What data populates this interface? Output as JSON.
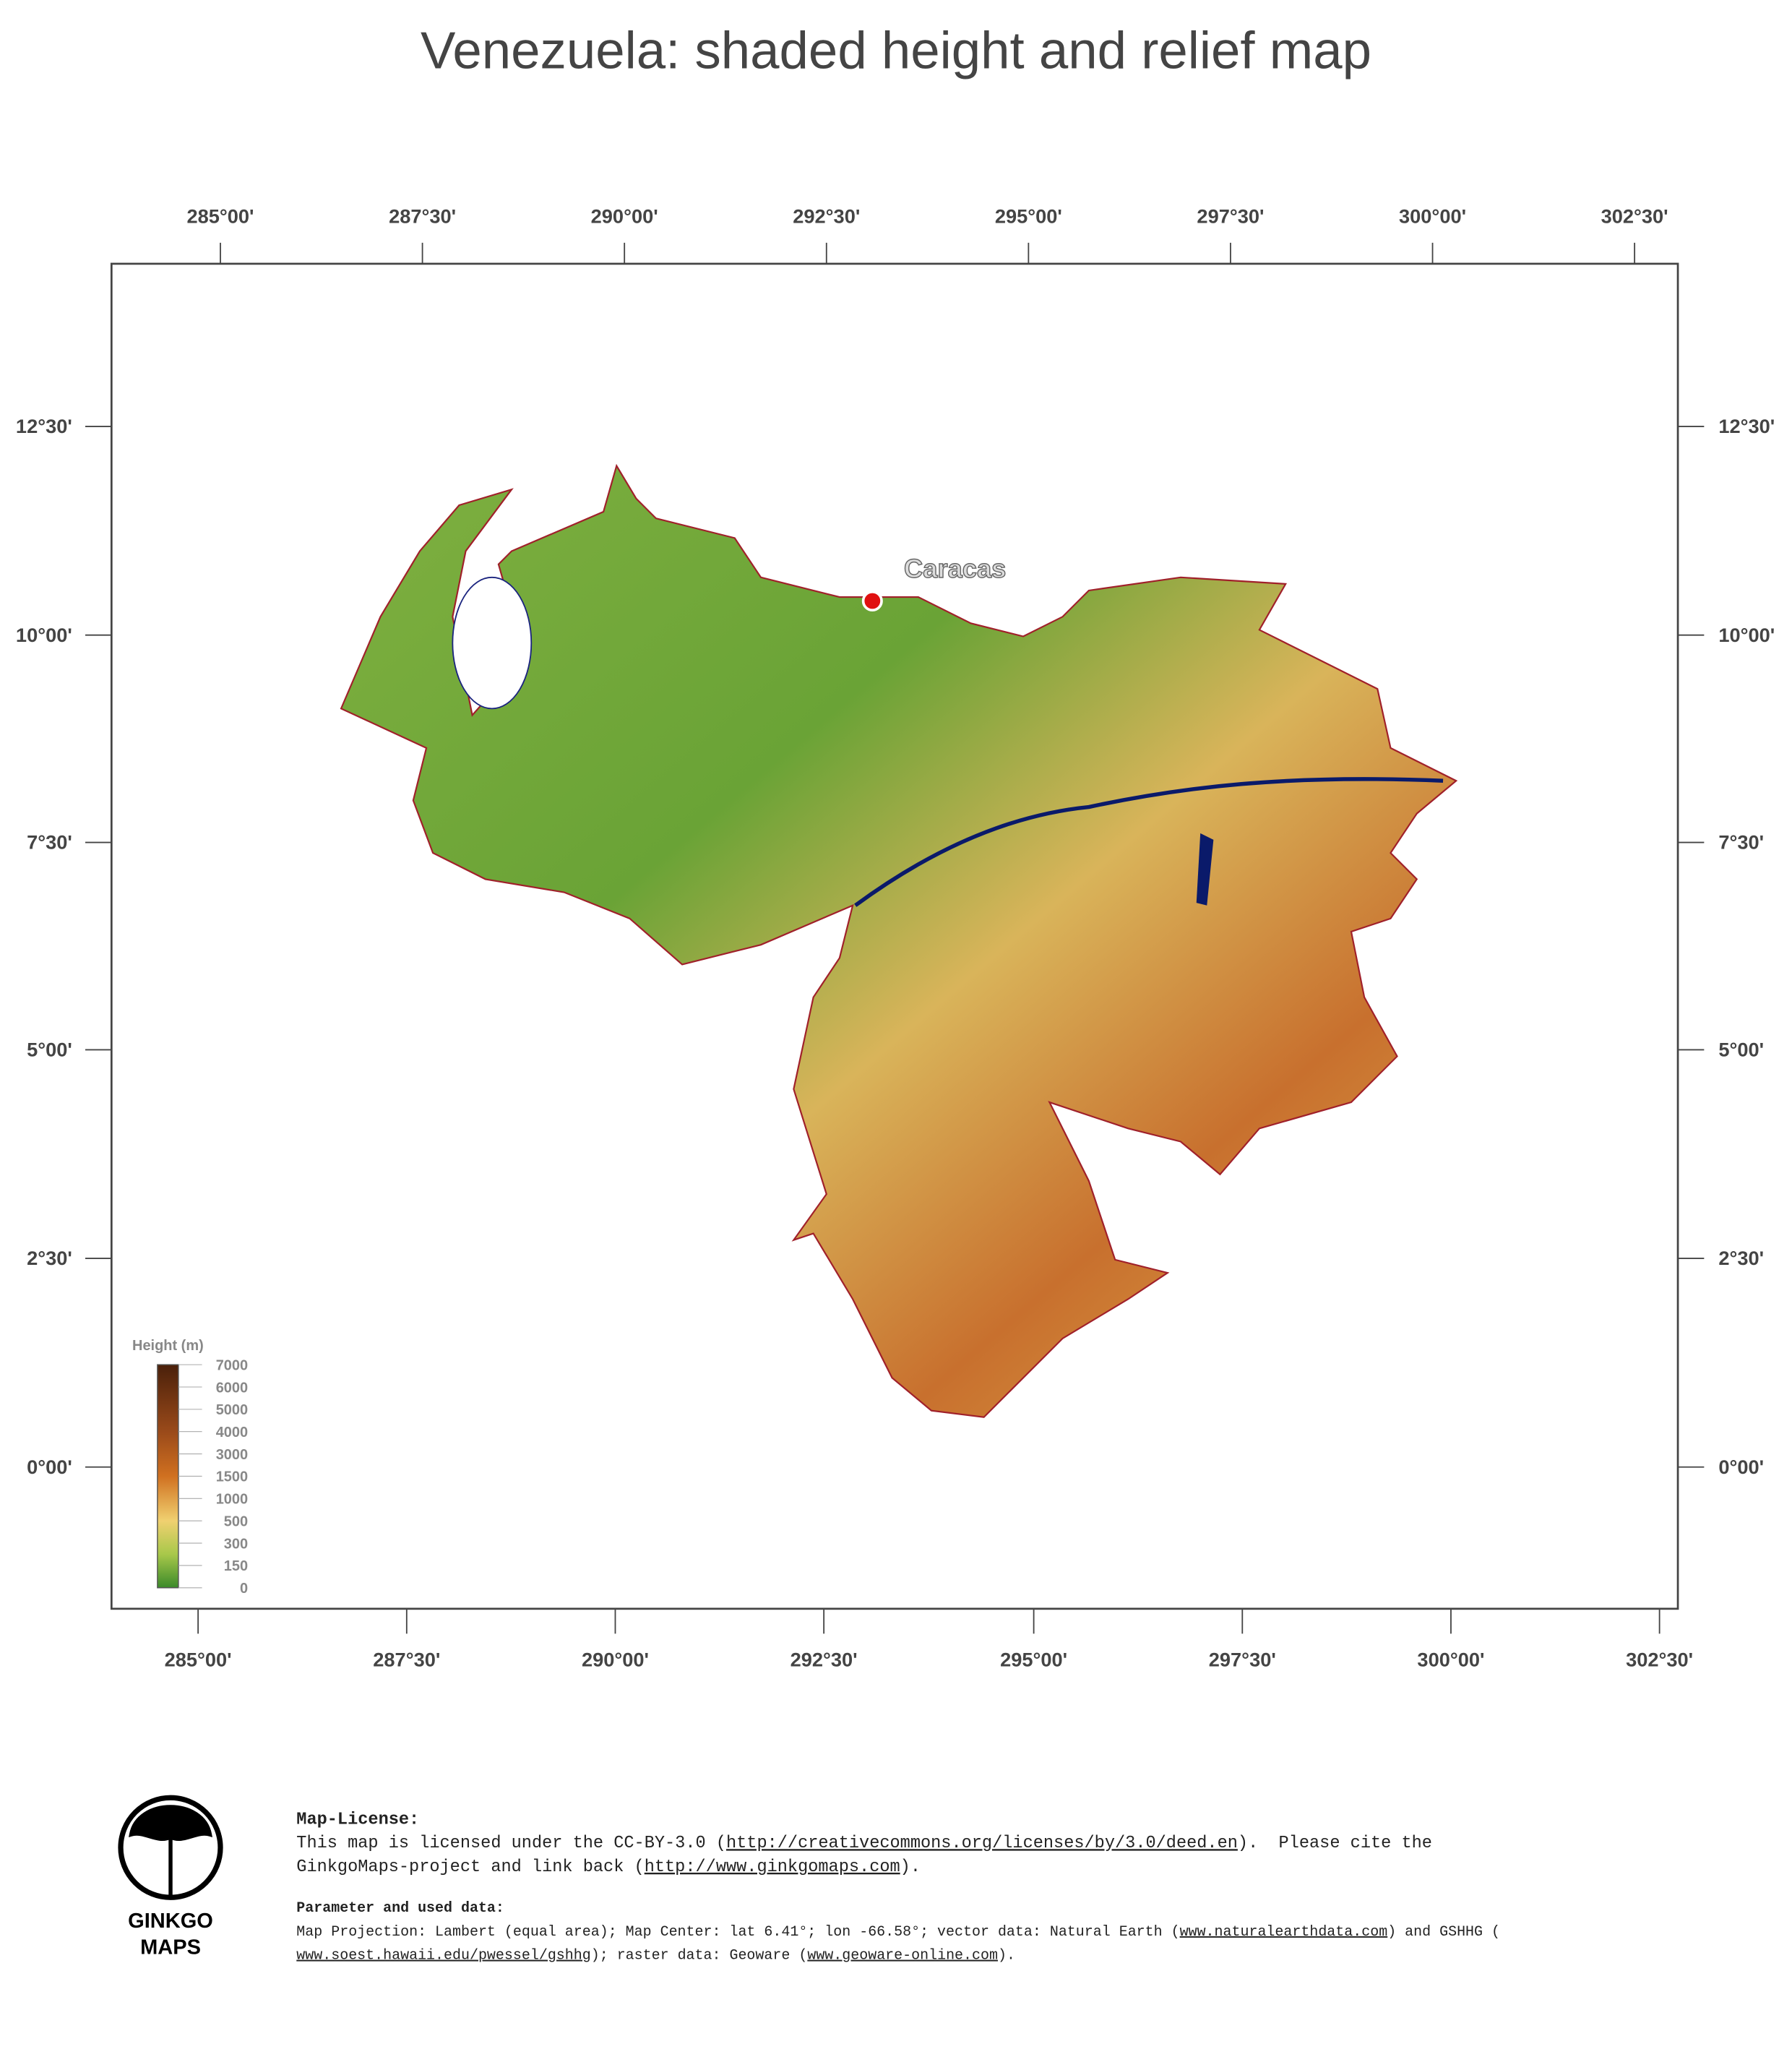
{
  "title": "Venezuela: shaded height and relief map",
  "axes": {
    "top": [
      "285°00'",
      "287°30'",
      "290°00'",
      "292°30'",
      "295°00'",
      "297°30'",
      "300°00'",
      "302°30'"
    ],
    "bottom": [
      "285°00'",
      "287°30'",
      "290°00'",
      "292°30'",
      "295°00'",
      "297°30'",
      "300°00'",
      "302°30'"
    ],
    "left": [
      "12°30'",
      "10°00'",
      "7°30'",
      "5°00'",
      "2°30'",
      "0°00'"
    ],
    "right": [
      "12°30'",
      "10°00'",
      "7°30'",
      "5°00'",
      "2°30'",
      "0°00'"
    ]
  },
  "city": "Caracas",
  "legend": {
    "title": "Height (m)",
    "labels": [
      "7000",
      "6000",
      "5000",
      "4000",
      "3000",
      "1500",
      "1000",
      "500",
      "300",
      "150",
      "0"
    ]
  },
  "logo": [
    "GINKGO",
    "MAPS"
  ],
  "license": {
    "heading": "Map-License:",
    "lines": [
      [
        "This map is licensed under the CC-BY-3.0 (",
        {
          "link": "http://creativecommons.org/licenses/by/3.0/deed.en"
        },
        ").  Please cite the"
      ],
      [
        "GinkgoMaps-project and link back (",
        {
          "link": "http://www.ginkgomaps.com"
        },
        ")."
      ]
    ],
    "params_heading": "Parameter and used data:",
    "params": [
      [
        "Map Projection: Lambert (equal area); Map Center: lat 6.41°; lon -66.58°; vector data: Natural Earth (",
        {
          "link": "www.naturalearthdata.com"
        },
        ") and GSHHG ("
      ],
      [
        {
          "link": "www.soest.hawaii.edu/pwessel/gshhg"
        },
        "); raster data: Geoware (",
        {
          "link": "www.geoware-online.com"
        },
        ")."
      ]
    ]
  }
}
